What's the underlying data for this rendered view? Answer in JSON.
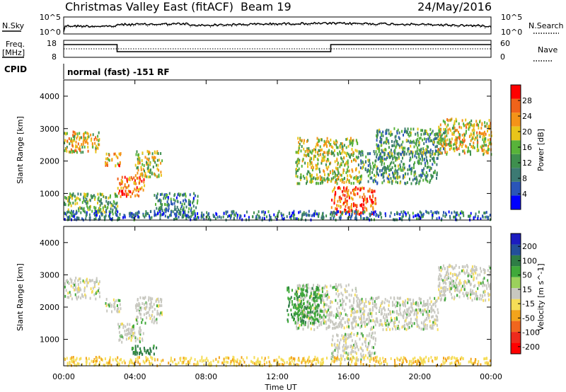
{
  "header": {
    "title": "Christmas Valley East (fitACF)",
    "beam": "Beam 19",
    "date": "24/May/2016"
  },
  "labels": {
    "nsky": "N.Sky",
    "nsearch": "N.Search",
    "freq_line1": "Freq.",
    "freq_line2": "[MHz]",
    "nave": "Nave",
    "cpid": "CPID",
    "cpid_value": "normal (fast) -151 RF"
  },
  "noise_axis": {
    "left_ticks": [
      "10^5",
      "10^0"
    ],
    "right_ticks": [
      "10^5",
      "10^0"
    ]
  },
  "freq_axis": {
    "left_ticks": [
      "18",
      "8"
    ],
    "right_ticks": [
      "60",
      "0"
    ]
  },
  "colors": {
    "power_scale": [
      "#0000ff",
      "#2a55b8",
      "#3c7a73",
      "#3e8f4e",
      "#58b33a",
      "#e8c51a",
      "#f49318",
      "#f0631a",
      "#ff0000"
    ],
    "velocity_scale": [
      "#1c1cc0",
      "#234f9a",
      "#2e7d45",
      "#40a93a",
      "#9bd15c",
      "#c8c8c0",
      "#f5dd57",
      "#f3a41c",
      "#f0661e",
      "#ee2a1c",
      "#ff0000"
    ],
    "ground_scatter": "#c8c8c0"
  },
  "chart_data": [
    {
      "type": "heatmap",
      "title": "",
      "xlabel": "Time UT",
      "ylabel": "Slant Range [km]",
      "x_ticks": [
        "00:00",
        "04:00",
        "08:00",
        "12:00",
        "16:00",
        "20:00",
        "00:00"
      ],
      "x_range_hours": [
        0,
        24
      ],
      "y_ticks": [
        1000,
        2000,
        3000,
        4000
      ],
      "ylim": [
        180,
        4500
      ],
      "colorbar_label": "Power [dB]",
      "colorbar_ticks": [
        4,
        8,
        12,
        16,
        20,
        24,
        28
      ],
      "colorbar_range": [
        0,
        32
      ],
      "regions": [
        {
          "t0": 0.0,
          "t1": 2.0,
          "r0": 2250,
          "r1": 2900,
          "power": 20
        },
        {
          "t0": 2.3,
          "t1": 3.2,
          "r0": 1850,
          "r1": 2250,
          "power": 22
        },
        {
          "t0": 3.0,
          "t1": 4.5,
          "r0": 900,
          "r1": 1500,
          "power": 26
        },
        {
          "t0": 4.0,
          "t1": 5.5,
          "r0": 1500,
          "r1": 2300,
          "power": 18
        },
        {
          "t0": 0.0,
          "t1": 3.0,
          "r0": 400,
          "r1": 1000,
          "power": 14
        },
        {
          "t0": 5.0,
          "t1": 7.5,
          "r0": 300,
          "r1": 1000,
          "power": 10
        },
        {
          "t0": 13.0,
          "t1": 16.5,
          "r0": 1300,
          "r1": 2700,
          "power": 18
        },
        {
          "t0": 15.0,
          "t1": 17.5,
          "r0": 350,
          "r1": 1200,
          "power": 27
        },
        {
          "t0": 16.5,
          "t1": 21.0,
          "r0": 1300,
          "r1": 2300,
          "power": 12
        },
        {
          "t0": 17.5,
          "t1": 21.5,
          "r0": 2200,
          "r1": 3000,
          "power": 12
        },
        {
          "t0": 21.0,
          "t1": 24.0,
          "r0": 2200,
          "r1": 3300,
          "power": 20
        },
        {
          "t0": 0.0,
          "t1": 24.0,
          "r0": 180,
          "r1": 450,
          "power": 8
        }
      ]
    },
    {
      "type": "heatmap",
      "title": "",
      "xlabel": "Time UT",
      "ylabel": "Slant Range [km]",
      "x_ticks": [
        "00:00",
        "04:00",
        "08:00",
        "12:00",
        "16:00",
        "20:00",
        "00:00"
      ],
      "x_range_hours": [
        0,
        24
      ],
      "y_ticks": [
        1000,
        2000,
        3000,
        4000
      ],
      "ylim": [
        180,
        4500
      ],
      "colorbar_label": "Velocity [m s^-1]",
      "colorbar_ticks": [
        200,
        100,
        50,
        15,
        -15,
        -50,
        -100,
        -200
      ],
      "regions": [
        {
          "t0": 0.0,
          "t1": 2.0,
          "r0": 2250,
          "r1": 2900,
          "velocity": 0
        },
        {
          "t0": 2.3,
          "t1": 3.2,
          "r0": 1850,
          "r1": 2250,
          "velocity": 0
        },
        {
          "t0": 3.0,
          "t1": 4.5,
          "r0": 900,
          "r1": 1500,
          "velocity": 0
        },
        {
          "t0": 4.0,
          "t1": 5.5,
          "r0": 1500,
          "r1": 2300,
          "velocity": 0
        },
        {
          "t0": 3.8,
          "t1": 5.2,
          "r0": 500,
          "r1": 800,
          "velocity": 60
        },
        {
          "t0": 13.0,
          "t1": 16.5,
          "r0": 1300,
          "r1": 2700,
          "velocity": 0
        },
        {
          "t0": 12.5,
          "t1": 14.5,
          "r0": 1500,
          "r1": 2600,
          "velocity": 40
        },
        {
          "t0": 15.0,
          "t1": 17.5,
          "r0": 350,
          "r1": 1200,
          "velocity": 0
        },
        {
          "t0": 16.5,
          "t1": 21.0,
          "r0": 1300,
          "r1": 2300,
          "velocity": 0
        },
        {
          "t0": 21.0,
          "t1": 24.0,
          "r0": 2200,
          "r1": 3300,
          "velocity": 0
        },
        {
          "t0": 0.0,
          "t1": 24.0,
          "r0": 180,
          "r1": 450,
          "velocity": -40
        }
      ]
    }
  ]
}
